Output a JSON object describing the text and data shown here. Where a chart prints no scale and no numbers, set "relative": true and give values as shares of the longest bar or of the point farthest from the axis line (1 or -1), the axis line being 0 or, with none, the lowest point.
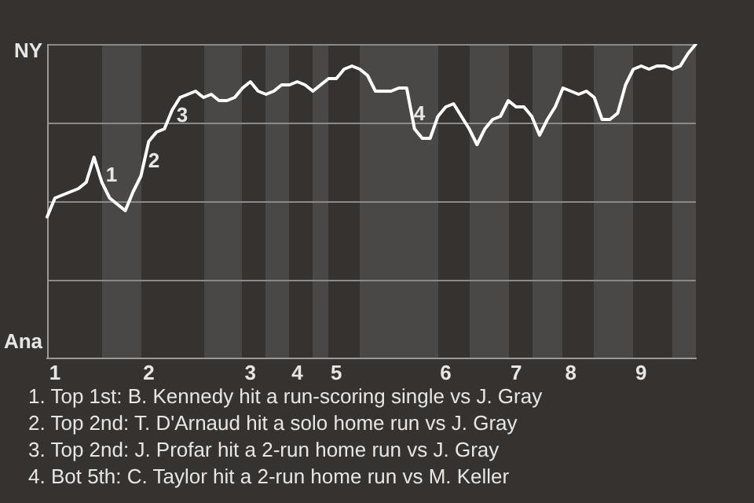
{
  "chart_data": {
    "type": "line",
    "relative": true,
    "grid": "y",
    "legend": false,
    "marker": "none",
    "categories": [
      null,
      "1",
      null,
      null,
      null,
      null,
      null,
      null,
      null,
      null,
      null,
      null,
      null,
      "2",
      null,
      null,
      null,
      null,
      null,
      null,
      null,
      null,
      null,
      null,
      null,
      null,
      "3",
      null,
      null,
      null,
      null,
      null,
      "4",
      null,
      null,
      null,
      null,
      "5",
      null,
      null,
      null,
      null,
      null,
      null,
      null,
      null,
      null,
      null,
      null,
      null,
      null,
      "6",
      null,
      null,
      null,
      null,
      null,
      null,
      null,
      null,
      "7",
      null,
      null,
      null,
      null,
      null,
      null,
      "8",
      null,
      null,
      null,
      null,
      null,
      null,
      null,
      null,
      "9",
      null,
      null,
      null,
      null,
      null,
      null,
      null
    ],
    "series": [
      {
        "color": "#ffffff",
        "values": [
          0.45,
          0.51,
          0.52,
          0.53,
          0.54,
          0.56,
          0.64,
          0.56,
          0.51,
          0.49,
          0.47,
          0.53,
          0.58,
          0.69,
          0.72,
          0.73,
          0.79,
          0.83,
          0.84,
          0.85,
          0.83,
          0.84,
          0.82,
          0.82,
          0.83,
          0.86,
          0.88,
          0.85,
          0.84,
          0.85,
          0.87,
          0.87,
          0.88,
          0.87,
          0.85,
          0.87,
          0.89,
          0.89,
          0.92,
          0.93,
          0.92,
          0.9,
          0.85,
          0.85,
          0.85,
          0.86,
          0.86,
          0.73,
          0.7,
          0.7,
          0.77,
          0.8,
          0.81,
          0.77,
          0.73,
          0.68,
          0.73,
          0.76,
          0.77,
          0.82,
          0.8,
          0.8,
          0.77,
          0.71,
          0.76,
          0.8,
          0.86,
          0.85,
          0.84,
          0.85,
          0.83,
          0.76,
          0.76,
          0.78,
          0.87,
          0.92,
          0.93,
          0.92,
          0.93,
          0.93,
          0.92,
          0.93,
          0.97,
          1
        ]
      }
    ],
    "annotations": [
      "NY",
      "Ana",
      "1",
      "2",
      "3",
      "4",
      "1. Top 1st: B. Kennedy hit a run-scoring single vs J. Gray",
      "2. Top 2nd: T. D'Arnaud hit a solo home run vs J. Gray",
      "3. Top 2nd: J. Profar hit a 2-run home run vs J. Gray",
      "4. Bot 5th: C. Taylor hit a 2-run home run vs M. Keller"
    ]
  }
}
